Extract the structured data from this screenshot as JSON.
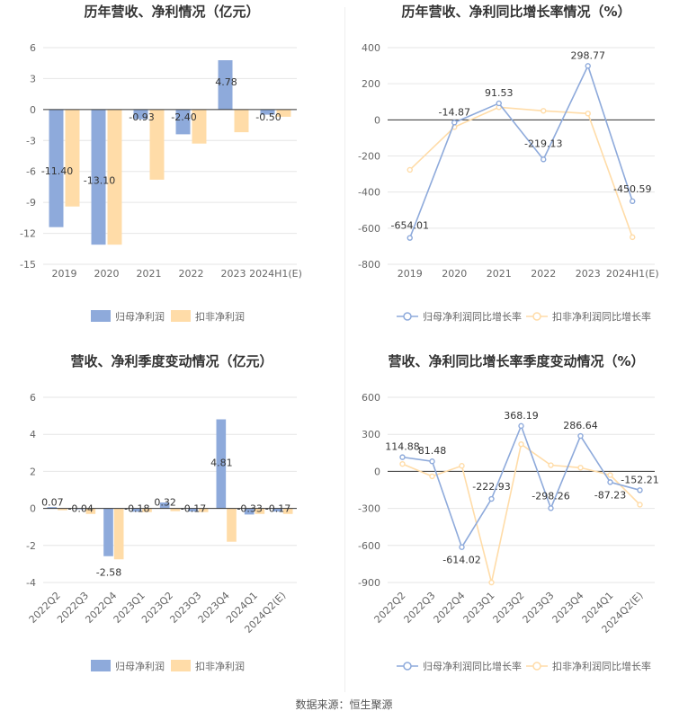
{
  "source_text": "数据来源：恒生聚源",
  "colors": {
    "primary": "#8eaadb",
    "secondary": "#ffdca8",
    "grid": "#e6e6e6",
    "axis": "#333333"
  },
  "chart_data": [
    {
      "type": "bar",
      "title": "历年营收、净利情况（亿元）",
      "categories": [
        "2019",
        "2020",
        "2021",
        "2022",
        "2023",
        "2024H1(E)"
      ],
      "series": [
        {
          "name": "归母净利润",
          "values": [
            -11.4,
            -13.1,
            -0.93,
            -2.4,
            4.78,
            -0.5
          ],
          "labels": [
            "-11.40",
            "-13.10",
            "-0.93",
            "-2.40",
            "4.78",
            "-0.50"
          ]
        },
        {
          "name": "扣非净利润",
          "values": [
            -9.4,
            -13.1,
            -6.8,
            -3.3,
            -2.2,
            -0.7
          ]
        }
      ],
      "ylim": [
        -15,
        6
      ],
      "yticks": [
        6,
        3,
        0,
        -3,
        -6,
        -9,
        -12,
        -15
      ],
      "legend": "bottom"
    },
    {
      "type": "line",
      "title": "历年营收、净利同比增长率情况（%）",
      "categories": [
        "2019",
        "2020",
        "2021",
        "2022",
        "2023",
        "2024H1(E)"
      ],
      "series": [
        {
          "name": "归母净利润同比增长率",
          "values": [
            -654.01,
            -14.87,
            91.53,
            -219.13,
            298.77,
            -450.59
          ],
          "labels": [
            "-654.01",
            "-14.87",
            "91.53",
            "-219.13",
            "298.77",
            "-450.59"
          ]
        },
        {
          "name": "扣非净利润同比增长率",
          "values": [
            -277,
            -40,
            70,
            50,
            35,
            -650
          ]
        }
      ],
      "ylim": [
        -800,
        400
      ],
      "yticks": [
        400,
        200,
        0,
        -200,
        -400,
        -600,
        -800
      ],
      "legend": "bottom"
    },
    {
      "type": "bar",
      "title": "营收、净利季度变动情况（亿元）",
      "categories": [
        "2022Q2",
        "2022Q3",
        "2022Q4",
        "2023Q1",
        "2023Q2",
        "2023Q3",
        "2023Q4",
        "2024Q1",
        "2024Q2(E)"
      ],
      "series": [
        {
          "name": "归母净利润",
          "values": [
            0.07,
            -0.04,
            -2.58,
            -0.18,
            0.32,
            -0.17,
            4.81,
            -0.33,
            -0.17
          ],
          "labels": [
            "0.07",
            "-0.04",
            "-2.58",
            "-0.18",
            "0.32",
            "-0.17",
            "4.81",
            "-0.33",
            "-0.17"
          ]
        },
        {
          "name": "扣非净利润",
          "values": [
            -0.1,
            -0.3,
            -2.75,
            -0.2,
            -0.15,
            -0.2,
            -1.8,
            -0.3,
            -0.3
          ]
        }
      ],
      "ylim": [
        -4,
        6
      ],
      "yticks": [
        6,
        4,
        2,
        0,
        -2,
        -4
      ],
      "legend": "bottom"
    },
    {
      "type": "line",
      "title": "营收、净利同比增长率季度变动情况（%）",
      "categories": [
        "2022Q2",
        "2022Q3",
        "2022Q4",
        "2023Q1",
        "2023Q2",
        "2023Q3",
        "2023Q4",
        "2024Q1",
        "2024Q2(E)"
      ],
      "series": [
        {
          "name": "归母净利润同比增长率",
          "values": [
            114.88,
            81.48,
            -614.02,
            -222.93,
            368.19,
            -298.26,
            286.64,
            -87.23,
            -152.21
          ],
          "labels": [
            "114.88",
            "81.48",
            "-614.02",
            "-222.93",
            "368.19",
            "-298.26",
            "286.64",
            "-87.23",
            "-152.21"
          ]
        },
        {
          "name": "扣非净利润同比增长率",
          "values": [
            60,
            -40,
            45,
            -900,
            220,
            50,
            30,
            -30,
            -270
          ]
        }
      ],
      "ylim": [
        -900,
        600
      ],
      "yticks": [
        600,
        300,
        0,
        -300,
        -600,
        -900
      ],
      "legend": "bottom"
    }
  ]
}
